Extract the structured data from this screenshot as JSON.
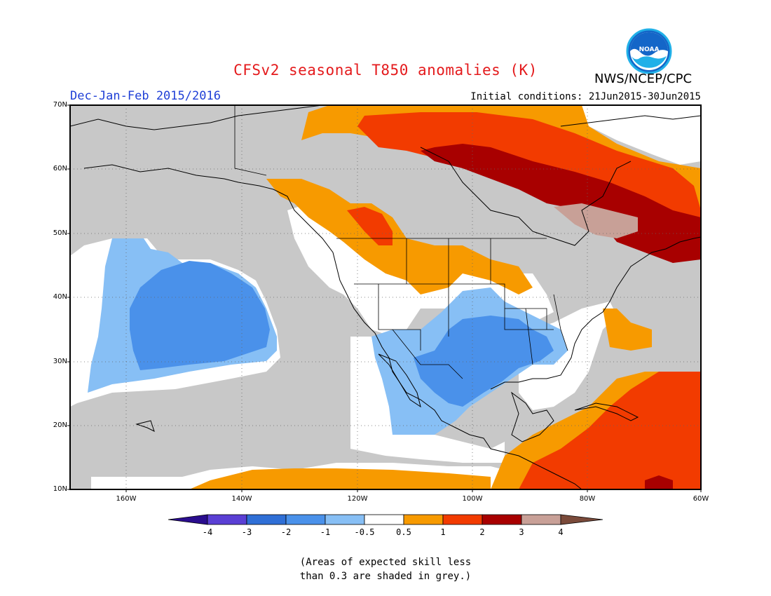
{
  "title": "CFSv2 seasonal T850 anomalies (K)",
  "agency": "NWS/NCEP/CPC",
  "season": "Dec-Jan-Feb 2015/2016",
  "initial_conditions": "Initial conditions: 21Jun2015-30Jun2015",
  "logo_icon": "noaa-logo-icon",
  "lat_labels": [
    "70N",
    "60N",
    "50N",
    "40N",
    "30N",
    "20N",
    "10N"
  ],
  "lon_labels": [
    "160W",
    "140W",
    "120W",
    "100W",
    "80W",
    "60W"
  ],
  "colorbar_labels": [
    "-4",
    "-3",
    "-2",
    "-1",
    "-0.5",
    "0.5",
    "1",
    "2",
    "3",
    "4"
  ],
  "colorbar_colors": [
    "#2a0d8e",
    "#5a3fd4",
    "#2f6fd6",
    "#4a91ea",
    "#87bff5",
    "#ffffff",
    "#f79a00",
    "#f23b00",
    "#a80000",
    "#c8a097",
    "#7a4a3a"
  ],
  "skill_note": [
    "(Areas of expected skill less",
    "than 0.3 are shaded in grey.)"
  ],
  "map_colors": {
    "grey": "#c8c8c8",
    "white": "#ffffff",
    "light_blue": "#87bff5",
    "blue": "#4a91ea",
    "orange": "#f79a00",
    "red": "#f23b00",
    "dark_red": "#a80000",
    "tan": "#c8a097"
  }
}
